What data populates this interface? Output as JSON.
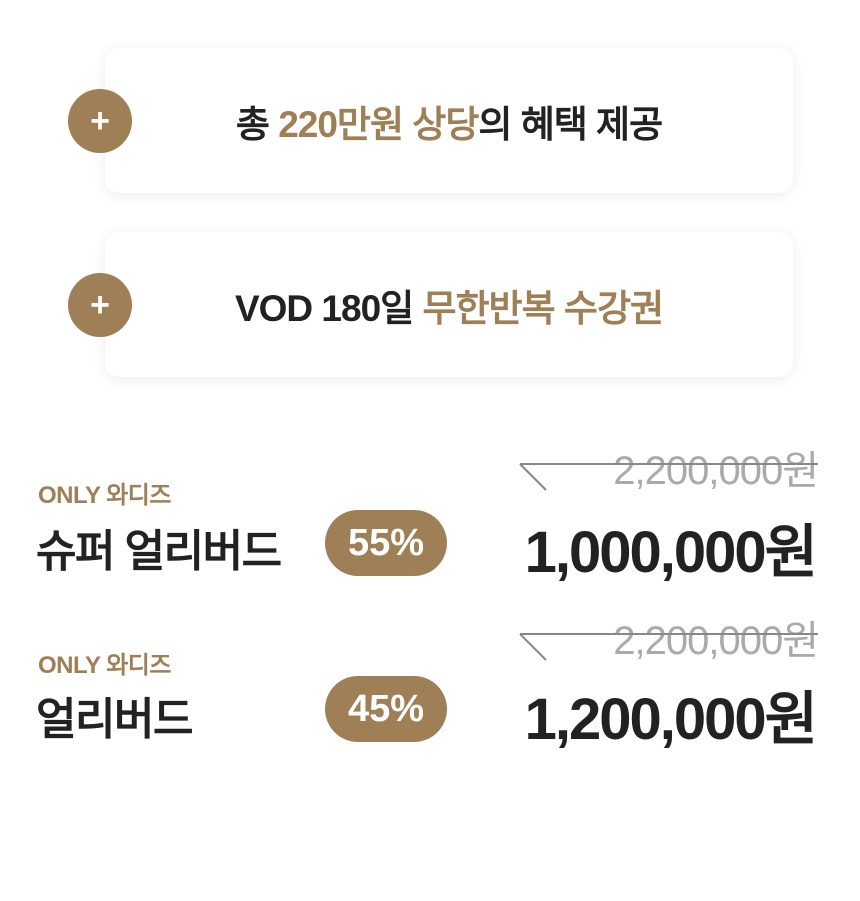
{
  "benefits": [
    {
      "parts": [
        {
          "text": "총 ",
          "accent": false
        },
        {
          "text": "220만원 상당",
          "accent": true
        },
        {
          "text": "의 혜택 제공",
          "accent": false
        }
      ]
    },
    {
      "parts": [
        {
          "text": "VOD 180일 ",
          "accent": false
        },
        {
          "text": "무한반복 수강권",
          "accent": true
        }
      ]
    }
  ],
  "plus_icon": "+",
  "plans": [
    {
      "tag": "ONLY 와디즈",
      "name": "슈퍼 얼리버드",
      "discount": "55%",
      "original_price": "2,200,000원",
      "price": "1,000,000원"
    },
    {
      "tag": "ONLY 와디즈",
      "name": "얼리버드",
      "discount": "45%",
      "original_price": "2,200,000원",
      "price": "1,200,000원"
    }
  ],
  "colors": {
    "accent": "#9e7f56",
    "text": "#222222",
    "muted": "#aaaaaa"
  }
}
